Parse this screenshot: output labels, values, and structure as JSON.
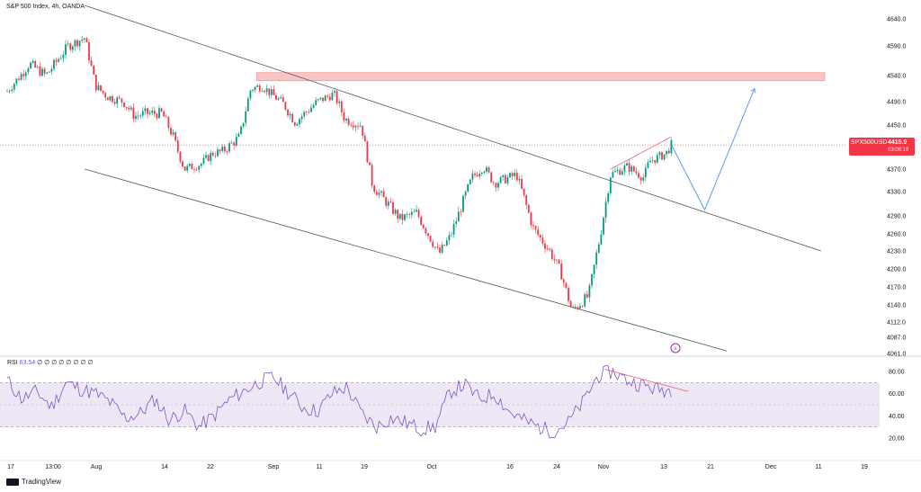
{
  "header": {
    "title": "S&P 500 Index, 4h, OANDA"
  },
  "price_tag": {
    "symbol": "SPX500USD",
    "price": "4415.9",
    "countdown": "03:06:18"
  },
  "rsi_header": {
    "label": "RSI",
    "value": "63.54",
    "placeholders": "∅ ∅ ∅ ∅ ∅ ∅ ∅ ∅"
  },
  "footer": {
    "brand": "TradingView"
  },
  "colors": {
    "up": "#089981",
    "down": "#f23645",
    "rsi_line": "#7e57c2",
    "rsi_band": "#ede7f6",
    "resistance_zone": "#f8c4c4",
    "projection": "#5b9cf6",
    "channel": "#555555",
    "trend_divergence": "#f06a7a"
  },
  "chart_data": {
    "type": "candlestick",
    "price_axis": {
      "ticks": [
        "4640.0",
        "4590.0",
        "4540.0",
        "4490.0",
        "4450.0",
        "4410.0",
        "4370.0",
        "4330.0",
        "4290.0",
        "4260.0",
        "4230.0",
        "4200.0",
        "4170.0",
        "4140.0",
        "4112.0",
        "4087.0",
        "4061.0"
      ]
    },
    "rsi_axis": {
      "ticks": [
        "80.00",
        "60.00",
        "40.00",
        "20.00"
      ],
      "band": [
        30,
        70
      ],
      "midline": 50
    },
    "x_ticks": [
      "17",
      "13:00",
      "Aug",
      "14",
      "22",
      "Sep",
      "11",
      "19",
      "Oct",
      "16",
      "24",
      "Nov",
      "13",
      "21",
      "Dec",
      "11",
      "19"
    ],
    "x_range": [
      "Jul 17",
      "Dec 19"
    ],
    "current_price": 4415.9,
    "close_path": [
      [
        "Jul 17",
        4510
      ],
      [
        "Jul 21",
        4560
      ],
      [
        "Jul 24",
        4540
      ],
      [
        "Jul 28",
        4590
      ],
      [
        "Jul 31",
        4605
      ],
      [
        "Aug 2",
        4520
      ],
      [
        "Aug 4",
        4500
      ],
      [
        "Aug 7",
        4490
      ],
      [
        "Aug 9",
        4465
      ],
      [
        "Aug 11",
        4470
      ],
      [
        "Aug 14",
        4470
      ],
      [
        "Aug 16",
        4430
      ],
      [
        "Aug 18",
        4370
      ],
      [
        "Aug 21",
        4380
      ],
      [
        "Aug 23",
        4400
      ],
      [
        "Aug 25",
        4405
      ],
      [
        "Aug 28",
        4430
      ],
      [
        "Aug 30",
        4515
      ],
      [
        "Sep 1",
        4520
      ],
      [
        "Sep 5",
        4485
      ],
      [
        "Sep 7",
        4455
      ],
      [
        "Sep 11",
        4490
      ],
      [
        "Sep 14",
        4505
      ],
      [
        "Sep 16",
        4460
      ],
      [
        "Sep 19",
        4450
      ],
      [
        "Sep 21",
        4340
      ],
      [
        "Sep 26",
        4285
      ],
      [
        "Sep 29",
        4295
      ],
      [
        "Oct 3",
        4225
      ],
      [
        "Oct 5",
        4255
      ],
      [
        "Oct 9",
        4355
      ],
      [
        "Oct 11",
        4375
      ],
      [
        "Oct 13",
        4345
      ],
      [
        "Oct 17",
        4360
      ],
      [
        "Oct 20",
        4270
      ],
      [
        "Oct 23",
        4230
      ],
      [
        "Oct 25",
        4195
      ],
      [
        "Oct 27",
        4130
      ],
      [
        "Oct 30",
        4155
      ],
      [
        "Nov 1",
        4250
      ],
      [
        "Nov 3",
        4360
      ],
      [
        "Nov 6",
        4375
      ],
      [
        "Nov 9",
        4355
      ],
      [
        "Nov 10",
        4385
      ],
      [
        "Nov 13",
        4400
      ],
      [
        "Nov 14",
        4416
      ]
    ],
    "rsi_values": [
      72,
      55,
      62,
      48,
      70,
      64,
      60,
      52,
      38,
      42,
      55,
      36,
      45,
      30,
      40,
      54,
      62,
      70,
      75,
      62,
      48,
      44,
      60,
      66,
      42,
      30,
      38,
      34,
      28,
      30,
      62,
      68,
      55,
      60,
      44,
      36,
      30,
      26,
      34,
      52,
      76,
      80,
      72,
      68,
      64,
      63.54
    ],
    "annotations": {
      "channel_upper": [
        [
          "Jul 31",
          4665
        ],
        [
          "Dec 11",
          4230
        ]
      ],
      "channel_lower": [
        [
          "Jul 31",
          4370
        ],
        [
          "Nov 24",
          4065
        ]
      ],
      "resistance_zone": [
        4530,
        4545
      ],
      "projection": [
        [
          "Nov 14",
          4416
        ],
        [
          "Nov 20",
          4300
        ],
        [
          "Nov 29",
          4515
        ]
      ],
      "price_divergence": [
        [
          "Nov 3",
          4370
        ],
        [
          "Nov 14",
          4430
        ]
      ],
      "rsi_divergence": [
        [
          "Nov 2",
          82
        ],
        [
          "Nov 17",
          62
        ]
      ]
    }
  }
}
